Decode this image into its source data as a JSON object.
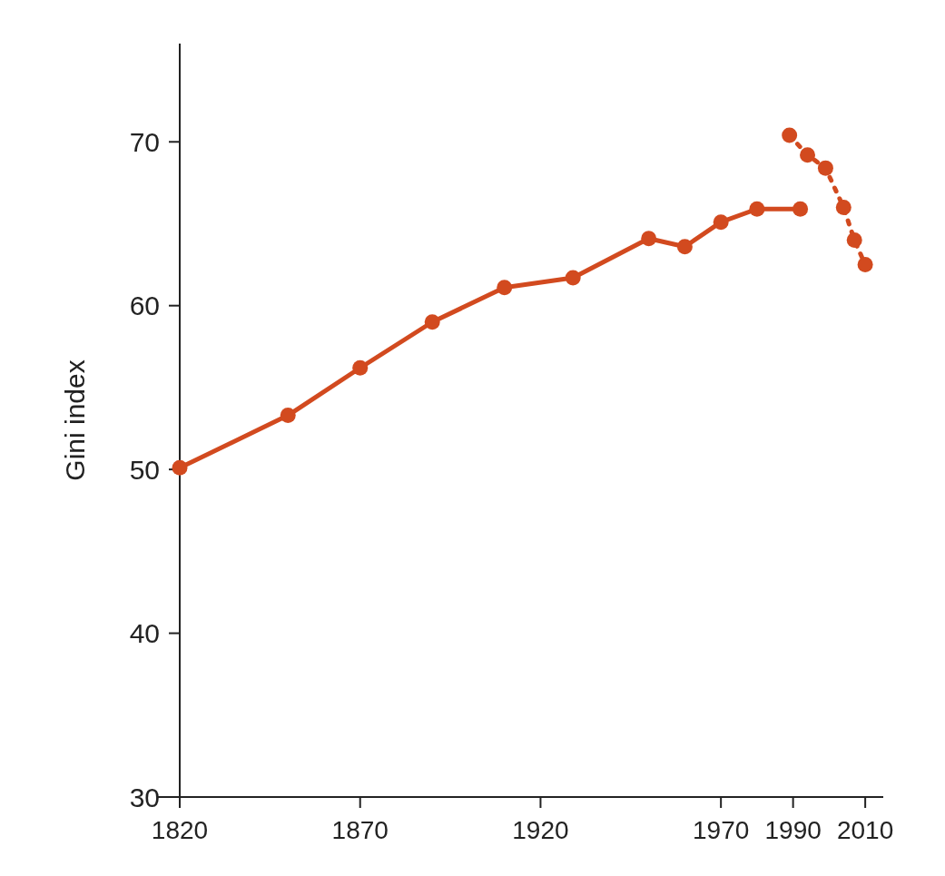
{
  "chart_data": {
    "type": "line",
    "ylabel": "Gini index",
    "xlim": [
      1820,
      2015
    ],
    "xticks": [
      1820,
      1870,
      1920,
      1970,
      1990,
      2010
    ],
    "ylim": [
      30,
      76
    ],
    "yticks": [
      30,
      40,
      50,
      60,
      70
    ],
    "grid": false,
    "marker": "circle",
    "series": [
      {
        "color": "#d24a1f",
        "line_style": "solid",
        "x": [
          1820,
          1850,
          1870,
          1890,
          1910,
          1929,
          1950,
          1960,
          1970,
          1980,
          1992
        ],
        "values": [
          50.1,
          53.3,
          56.2,
          59.0,
          61.1,
          61.7,
          64.1,
          63.6,
          65.1,
          65.9,
          65.9
        ]
      },
      {
        "color": "#d24a1f",
        "line_style": "dotted",
        "x": [
          1989,
          1994,
          1999,
          2004,
          2007,
          2010
        ],
        "values": [
          70.4,
          69.2,
          68.4,
          66.0,
          64.0,
          62.5
        ]
      }
    ]
  }
}
